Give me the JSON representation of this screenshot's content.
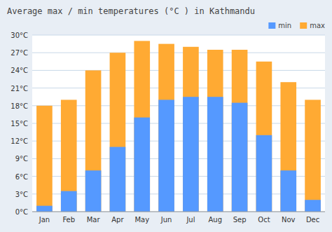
{
  "chart_data": {
    "type": "bar",
    "title": "Average max / min temperatures (°C ) in Kathmandu",
    "categories": [
      "Jan",
      "Feb",
      "Mar",
      "Apr",
      "May",
      "Jun",
      "Jul",
      "Aug",
      "Sep",
      "Oct",
      "Nov",
      "Dec"
    ],
    "series": [
      {
        "name": "min",
        "color": "#5599ff",
        "values": [
          1,
          3.5,
          7,
          11,
          16,
          19,
          19.5,
          19.5,
          18.5,
          13,
          7,
          2
        ]
      },
      {
        "name": "max",
        "color": "#ffaa33",
        "values": [
          18,
          19,
          24,
          27,
          29,
          28.5,
          28,
          27.5,
          27.5,
          25.5,
          22,
          19
        ]
      }
    ],
    "ylim": [
      0,
      30
    ],
    "yticks": [
      {
        "value": 0,
        "label": "0°C"
      },
      {
        "value": 3,
        "label": "3°C"
      },
      {
        "value": 6,
        "label": "6°C"
      },
      {
        "value": 9,
        "label": "9°C"
      },
      {
        "value": 12,
        "label": "12°C"
      },
      {
        "value": 15,
        "label": "15°C"
      },
      {
        "value": 18,
        "label": "18°C"
      },
      {
        "value": 21,
        "label": "21°C"
      },
      {
        "value": 24,
        "label": "24°C"
      },
      {
        "value": 27,
        "label": "27°C"
      },
      {
        "value": 30,
        "label": "30°C"
      }
    ],
    "grid": true,
    "legend": "upper right"
  }
}
